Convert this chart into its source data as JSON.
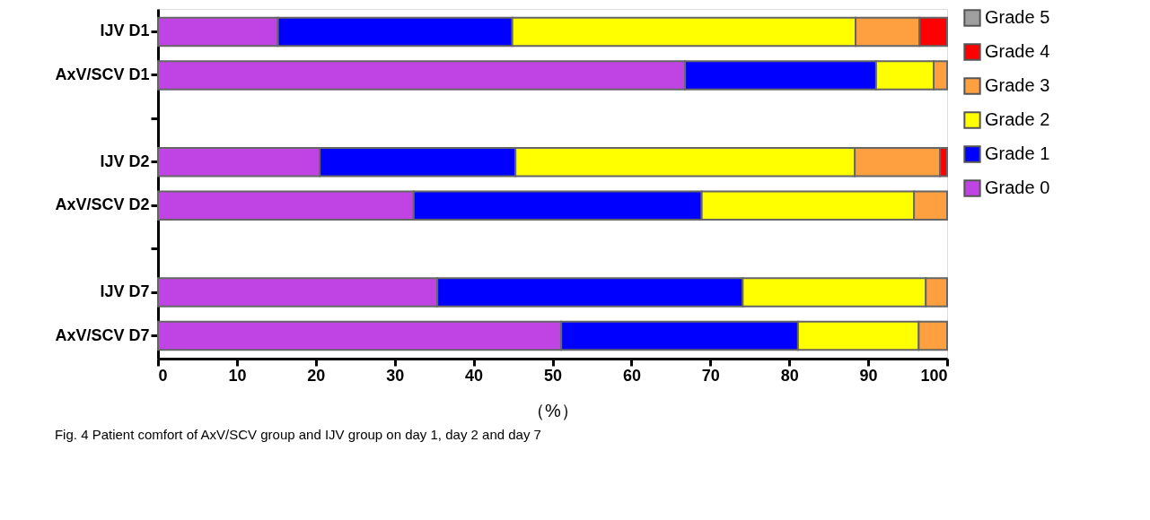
{
  "chart_data": {
    "type": "bar",
    "orientation": "horizontal",
    "stacked": true,
    "categories": [
      "IJV D1",
      "AxV/SCV D1",
      null,
      "IJV D2",
      "AxV/SCV D2",
      null,
      "IJV D7",
      "AxV/SCV D7"
    ],
    "series": [
      {
        "name": "Grade 0",
        "color": "#c044e4",
        "values": [
          15.2,
          66.8,
          null,
          20.5,
          32.4,
          null,
          35.4,
          51.1
        ]
      },
      {
        "name": "Grade 1",
        "color": "#0000ff",
        "values": [
          29.7,
          24.2,
          null,
          24.8,
          36.5,
          null,
          38.7,
          30.0
        ]
      },
      {
        "name": "Grade 2",
        "color": "#ffff00",
        "values": [
          43.5,
          7.3,
          null,
          43.0,
          26.9,
          null,
          23.2,
          15.3
        ]
      },
      {
        "name": "Grade 3",
        "color": "#ffa040",
        "values": [
          8.1,
          1.7,
          null,
          10.8,
          4.2,
          null,
          2.7,
          3.6
        ]
      },
      {
        "name": "Grade 4",
        "color": "#ff0000",
        "values": [
          3.5,
          null,
          null,
          0.9,
          null,
          null,
          null,
          null
        ]
      },
      {
        "name": "Grade 5",
        "color": "#a0a0a0",
        "values": [
          null,
          null,
          null,
          null,
          null,
          null,
          null,
          null
        ]
      }
    ],
    "xlim": [
      0,
      100
    ],
    "xticks": [
      0,
      10,
      20,
      30,
      40,
      50,
      60,
      70,
      80,
      90,
      100
    ],
    "xlabel": "（%）",
    "legend": "right",
    "grid": false,
    "annotations": [
      "Fig. 4  Patient comfort of AxV/SCV group and IJV group on day 1, day 2 and day 7"
    ]
  }
}
